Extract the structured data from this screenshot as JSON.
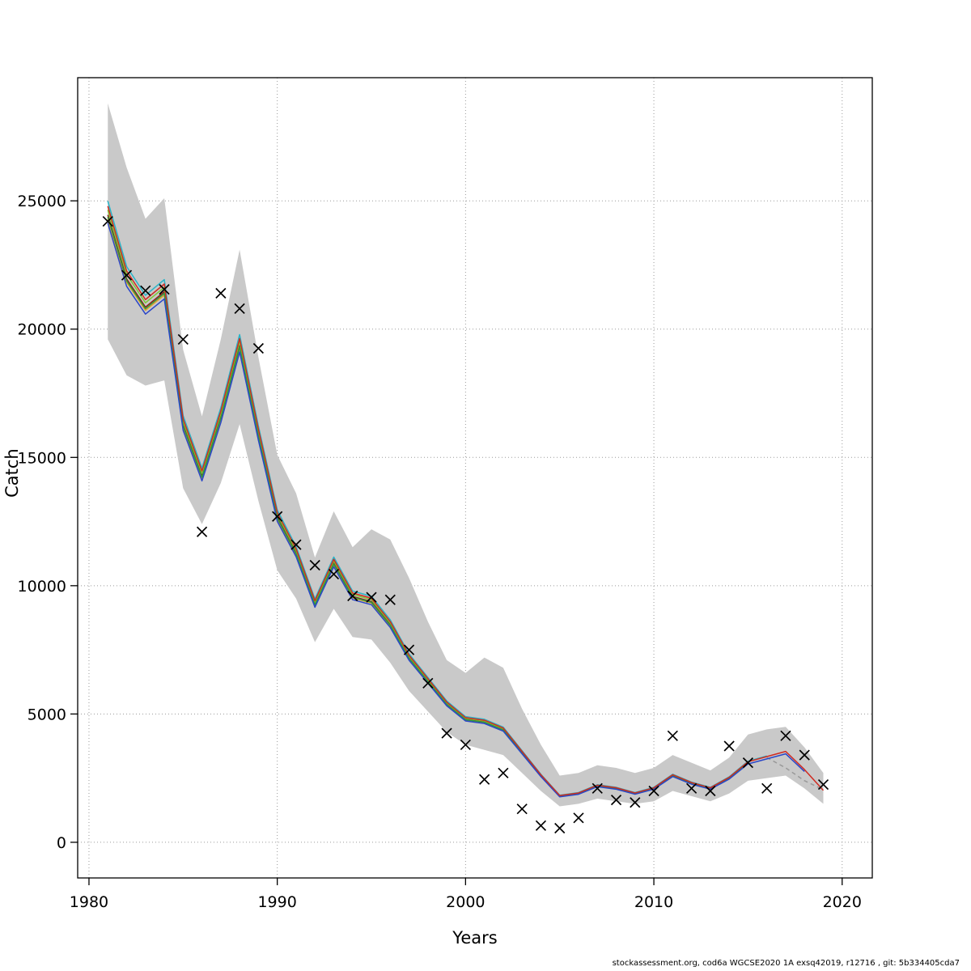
{
  "footer": {
    "text": "stockassessment.org, cod6a  WGCSE2020  1A  exsq42019, r12716 , git: 5b334405cda7"
  },
  "chart_data": {
    "type": "line",
    "title": "",
    "xlabel": "Years",
    "ylabel": "Catch",
    "xlim": [
      1979.4,
      2021.6
    ],
    "ylim": [
      -1390,
      29800
    ],
    "xticks": [
      1980,
      1990,
      2000,
      2010,
      2020
    ],
    "yticks": [
      0,
      5000,
      10000,
      15000,
      20000,
      25000
    ],
    "grid": "dotted",
    "years": [
      1981,
      1982,
      1983,
      1984,
      1985,
      1986,
      1987,
      1988,
      1989,
      1990,
      1991,
      1992,
      1993,
      1994,
      1995,
      1996,
      1997,
      1998,
      1999,
      2000,
      2001,
      2002,
      2003,
      2004,
      2005,
      2006,
      2007,
      2008,
      2009,
      2010,
      2011,
      2012,
      2013,
      2014,
      2015,
      2016,
      2017,
      2018,
      2019
    ],
    "band": {
      "color": "#c9c9c9",
      "lower": [
        19600,
        18200,
        17800,
        18000,
        13800,
        12400,
        14000,
        16300,
        13300,
        10600,
        9500,
        7800,
        9100,
        8000,
        7900,
        7000,
        5900,
        5100,
        4300,
        3800,
        3600,
        3400,
        2700,
        2000,
        1400,
        1500,
        1700,
        1600,
        1500,
        1600,
        2000,
        1800,
        1600,
        1900,
        2400,
        2500,
        2600,
        2100,
        1500
      ],
      "upper": [
        28800,
        26300,
        24300,
        25100,
        19200,
        16600,
        19600,
        23100,
        18900,
        15100,
        13600,
        11100,
        12900,
        11500,
        12200,
        11800,
        10300,
        8600,
        7100,
        6600,
        7200,
        6800,
        5200,
        3800,
        2600,
        2700,
        3000,
        2900,
        2700,
        2900,
        3400,
        3100,
        2800,
        3300,
        4200,
        4400,
        4500,
        3700,
        2700
      ]
    },
    "fit": {
      "values": [
        24500,
        22000,
        20900,
        21500,
        16300,
        14300,
        16600,
        19400,
        15900,
        12700,
        11300,
        9300,
        10900,
        9600,
        9400,
        8500,
        7200,
        6300,
        5400,
        4800,
        4700,
        4400,
        3500,
        2600,
        1800,
        1900,
        2200,
        2100,
        1900,
        2100,
        2600,
        2300,
        2100,
        2500,
        3100,
        3300,
        3500,
        2800,
        2000
      ]
    },
    "retro_series": [
      {
        "name": "retro-line-2012",
        "color": "#8b1a12",
        "end_year": 2012,
        "offset": 0.998
      },
      {
        "name": "retro-line-2013",
        "color": "#e0a028",
        "end_year": 2013,
        "offset": 0.992
      },
      {
        "name": "retro-line-2014",
        "color": "#7dc832",
        "end_year": 2014,
        "offset": 1.006
      },
      {
        "name": "retro-line-2015",
        "color": "#2e9640",
        "end_year": 2015,
        "offset": 0.995
      },
      {
        "name": "retro-line-2016",
        "color": "#28b4c8",
        "end_year": 2016,
        "offset": 1.02
      },
      {
        "name": "retro-line-2018",
        "color": "#2a46c8",
        "end_year": 2018,
        "offset": 0.985
      },
      {
        "name": "retro-line-2019",
        "color": "#d02a20",
        "end_year": 2019,
        "offset": 1.012
      }
    ],
    "dashed_tail": {
      "color": "#999999",
      "years": [
        2016,
        2017,
        2018,
        2019
      ],
      "values": [
        3300,
        2900,
        2400,
        2050
      ]
    },
    "observations": {
      "marker": "x",
      "color": "#000000",
      "values": [
        24200,
        22100,
        21500,
        21550,
        19600,
        12100,
        21400,
        20800,
        19250,
        12700,
        11600,
        10800,
        10450,
        9600,
        9550,
        9450,
        7500,
        6200,
        4250,
        3800,
        2450,
        2700,
        1300,
        650,
        550,
        950,
        2100,
        1650,
        1550,
        2000,
        4150,
        2100,
        2000,
        3750,
        3100,
        2100,
        4150,
        3400,
        2250
      ]
    }
  }
}
